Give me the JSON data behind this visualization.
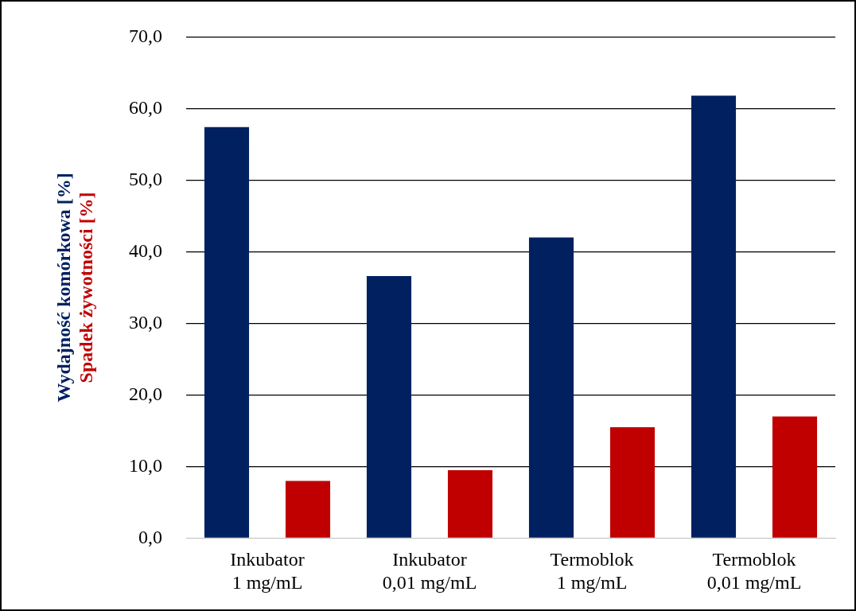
{
  "chart_data": {
    "type": "bar",
    "categories": [
      "Inkubator\n1 mg/mL",
      "Inkubator\n0,01 mg/mL",
      "Termoblok\n1 mg/mL",
      "Termoblok\n0,01 mg/mL"
    ],
    "series": [
      {
        "name": "Wydajność komórkowa [%]",
        "color": "#002060",
        "values": [
          57.4,
          36.6,
          42.0,
          61.8
        ]
      },
      {
        "name": "Spadek żywotności [%]",
        "color": "#c00000",
        "values": [
          8.0,
          9.5,
          15.5,
          17.0
        ]
      }
    ],
    "ylim": [
      0,
      70
    ],
    "yticks": [
      {
        "value": 0,
        "label": "0,0"
      },
      {
        "value": 10,
        "label": "10,0"
      },
      {
        "value": 20,
        "label": "20,0"
      },
      {
        "value": 30,
        "label": "30,0"
      },
      {
        "value": 40,
        "label": "40,0"
      },
      {
        "value": 50,
        "label": "50,0"
      },
      {
        "value": 60,
        "label": "60,0"
      },
      {
        "value": 70,
        "label": "70,0"
      }
    ],
    "grid": "y",
    "legend": false
  }
}
